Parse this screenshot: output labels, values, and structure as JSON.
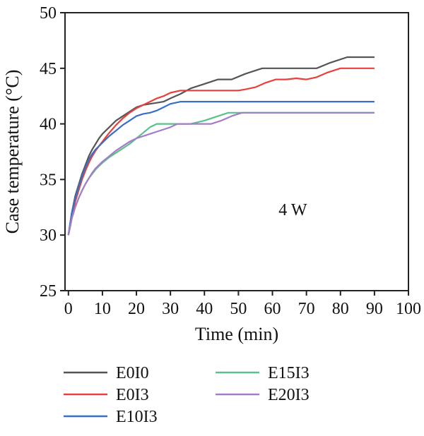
{
  "chart_data": {
    "type": "line",
    "xlabel": "Time (min)",
    "ylabel": "Case temperature (°C)",
    "xlim": [
      -1,
      100
    ],
    "ylim": [
      25,
      50
    ],
    "xticks": [
      0,
      10,
      20,
      30,
      40,
      50,
      60,
      70,
      80,
      90,
      100
    ],
    "yticks": [
      25,
      30,
      35,
      40,
      45,
      50
    ],
    "grid": false,
    "legend_position": "bottom",
    "annotation": "4 W",
    "series": [
      {
        "name": "E0I0",
        "color": "#555555",
        "points": [
          [
            0,
            30
          ],
          [
            1,
            32
          ],
          [
            2,
            33.5
          ],
          [
            3,
            34.5
          ],
          [
            4,
            35.5
          ],
          [
            5,
            36.3
          ],
          [
            6,
            37.1
          ],
          [
            7,
            37.7
          ],
          [
            8,
            38.2
          ],
          [
            9,
            38.7
          ],
          [
            10,
            39.1
          ],
          [
            12,
            39.7
          ],
          [
            14,
            40.3
          ],
          [
            16,
            40.7
          ],
          [
            18,
            41.1
          ],
          [
            20,
            41.5
          ],
          [
            22,
            41.7
          ],
          [
            24,
            41.8
          ],
          [
            26,
            41.9
          ],
          [
            28,
            42
          ],
          [
            30,
            42.3
          ],
          [
            33,
            42.7
          ],
          [
            36,
            43.2
          ],
          [
            40,
            43.6
          ],
          [
            44,
            44
          ],
          [
            48,
            44
          ],
          [
            52,
            44.5
          ],
          [
            57,
            45
          ],
          [
            62,
            45
          ],
          [
            67,
            45
          ],
          [
            73,
            45
          ],
          [
            77,
            45.5
          ],
          [
            82,
            46
          ],
          [
            86,
            46
          ],
          [
            90,
            46
          ]
        ]
      },
      {
        "name": "E0I3",
        "color": "#e8403a",
        "points": [
          [
            0,
            30
          ],
          [
            1,
            31.5
          ],
          [
            2,
            33
          ],
          [
            3,
            34
          ],
          [
            4,
            35
          ],
          [
            5,
            35.8
          ],
          [
            6,
            36.5
          ],
          [
            7,
            37.1
          ],
          [
            8,
            37.6
          ],
          [
            9,
            38
          ],
          [
            10,
            38.4
          ],
          [
            12,
            39.2
          ],
          [
            14,
            39.9
          ],
          [
            16,
            40.5
          ],
          [
            18,
            41
          ],
          [
            20,
            41.4
          ],
          [
            22,
            41.7
          ],
          [
            24,
            42
          ],
          [
            26,
            42.3
          ],
          [
            28,
            42.5
          ],
          [
            30,
            42.8
          ],
          [
            33,
            43
          ],
          [
            36,
            43
          ],
          [
            40,
            43
          ],
          [
            45,
            43
          ],
          [
            50,
            43
          ],
          [
            52,
            43.1
          ],
          [
            55,
            43.3
          ],
          [
            58,
            43.7
          ],
          [
            61,
            44
          ],
          [
            64,
            44
          ],
          [
            67,
            44.1
          ],
          [
            70,
            44
          ],
          [
            73,
            44.2
          ],
          [
            76,
            44.6
          ],
          [
            80,
            45
          ],
          [
            85,
            45
          ],
          [
            90,
            45
          ]
        ]
      },
      {
        "name": "E10I3",
        "color": "#3a6fc4",
        "points": [
          [
            0,
            30
          ],
          [
            1,
            32
          ],
          [
            2,
            33.3
          ],
          [
            3,
            34.3
          ],
          [
            4,
            35.3
          ],
          [
            5,
            36.1
          ],
          [
            6,
            36.8
          ],
          [
            7,
            37.3
          ],
          [
            8,
            37.7
          ],
          [
            9,
            38
          ],
          [
            10,
            38.3
          ],
          [
            12,
            38.9
          ],
          [
            14,
            39.4
          ],
          [
            16,
            39.9
          ],
          [
            18,
            40.3
          ],
          [
            20,
            40.7
          ],
          [
            22,
            40.9
          ],
          [
            24,
            41
          ],
          [
            26,
            41.2
          ],
          [
            28,
            41.5
          ],
          [
            30,
            41.8
          ],
          [
            33,
            42
          ],
          [
            40,
            42
          ],
          [
            50,
            42
          ],
          [
            60,
            42
          ],
          [
            70,
            42
          ],
          [
            80,
            42
          ],
          [
            90,
            42
          ]
        ]
      },
      {
        "name": "E15I3",
        "color": "#5cc08a",
        "points": [
          [
            0,
            30
          ],
          [
            1,
            31.5
          ],
          [
            2,
            32.5
          ],
          [
            3,
            33.3
          ],
          [
            4,
            34
          ],
          [
            5,
            34.6
          ],
          [
            6,
            35.1
          ],
          [
            7,
            35.5
          ],
          [
            8,
            35.9
          ],
          [
            9,
            36.2
          ],
          [
            10,
            36.5
          ],
          [
            12,
            37
          ],
          [
            14,
            37.4
          ],
          [
            16,
            37.8
          ],
          [
            18,
            38.2
          ],
          [
            20,
            38.7
          ],
          [
            22,
            39.2
          ],
          [
            24,
            39.7
          ],
          [
            26,
            40
          ],
          [
            28,
            40
          ],
          [
            30,
            40
          ],
          [
            32,
            40
          ],
          [
            36,
            40
          ],
          [
            40,
            40.3
          ],
          [
            44,
            40.7
          ],
          [
            47,
            41
          ],
          [
            50,
            41
          ],
          [
            55,
            41
          ],
          [
            60,
            41
          ],
          [
            70,
            41
          ],
          [
            80,
            41
          ],
          [
            90,
            41
          ]
        ]
      },
      {
        "name": "E20I3",
        "color": "#a47cc9",
        "points": [
          [
            0,
            30
          ],
          [
            1,
            31.5
          ],
          [
            2,
            32.5
          ],
          [
            3,
            33.3
          ],
          [
            4,
            34
          ],
          [
            5,
            34.6
          ],
          [
            6,
            35.1
          ],
          [
            7,
            35.6
          ],
          [
            8,
            36
          ],
          [
            9,
            36.3
          ],
          [
            10,
            36.6
          ],
          [
            12,
            37.1
          ],
          [
            14,
            37.6
          ],
          [
            16,
            38
          ],
          [
            18,
            38.4
          ],
          [
            20,
            38.7
          ],
          [
            22,
            38.9
          ],
          [
            25,
            39.2
          ],
          [
            28,
            39.5
          ],
          [
            30,
            39.7
          ],
          [
            32,
            40
          ],
          [
            36,
            40
          ],
          [
            40,
            40
          ],
          [
            42,
            40
          ],
          [
            45,
            40.3
          ],
          [
            48,
            40.7
          ],
          [
            51,
            41
          ],
          [
            55,
            41
          ],
          [
            60,
            41
          ],
          [
            70,
            41
          ],
          [
            80,
            41
          ],
          [
            90,
            41
          ]
        ]
      }
    ]
  }
}
